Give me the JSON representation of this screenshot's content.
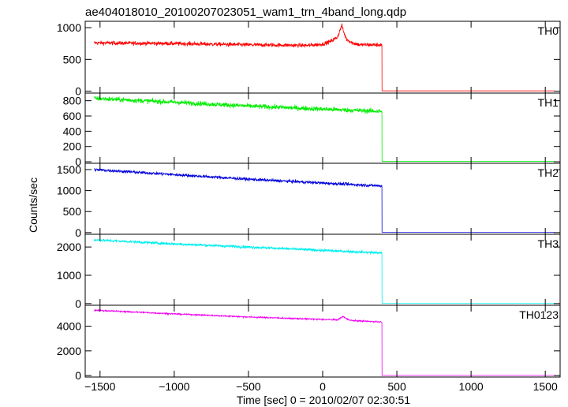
{
  "title": "ae404018010_20100207023051_wam1_trn_4band_long.qdp",
  "chart_data": {
    "type": "line",
    "title": "ae404018010_20100207023051_wam1_trn_4band_long.qdp",
    "xlabel": "Time [sec] 0 = 2010/02/07 02:30:51",
    "ylabel": "Counts/sec",
    "xlim": [
      -1600,
      1600
    ],
    "x_ticks": [
      -1500,
      -1000,
      -500,
      0,
      500,
      1000,
      1500
    ],
    "x_tick_labels": [
      "−1500",
      "−1000",
      "−500",
      "0",
      "500",
      "1000",
      "1500"
    ],
    "grid": false,
    "data_end_time": 400,
    "data_start_time": -1540,
    "series": [
      {
        "name": "TH0",
        "color": "#ff0000",
        "ylim": [
          -30,
          1100
        ],
        "y_ticks": [
          0,
          500,
          1000
        ],
        "y_tick_labels": [
          "0",
          "500",
          "1000"
        ],
        "profile_times": [
          -1540,
          -1000,
          -500,
          -100,
          0,
          50,
          100,
          120,
          130,
          140,
          160,
          200,
          250,
          400
        ],
        "profile_values": [
          760,
          750,
          730,
          720,
          740,
          780,
          850,
          980,
          1040,
          940,
          820,
          760,
          730,
          730
        ],
        "noise": 30,
        "after_level": 5
      },
      {
        "name": "TH1",
        "color": "#00ee00",
        "ylim": [
          -20,
          900
        ],
        "y_ticks": [
          0,
          200,
          400,
          600,
          800
        ],
        "y_tick_labels": [
          "0",
          "200",
          "400",
          "600",
          "800"
        ],
        "profile_times": [
          -1540,
          -1000,
          -500,
          0,
          400
        ],
        "profile_values": [
          830,
          780,
          730,
          690,
          660
        ],
        "noise": 30,
        "after_level": 5
      },
      {
        "name": "TH2",
        "color": "#0000dd",
        "ylim": [
          -40,
          1650
        ],
        "y_ticks": [
          0,
          500,
          1000,
          1500
        ],
        "y_tick_labels": [
          "0",
          "500",
          "1000",
          "1500"
        ],
        "profile_times": [
          -1540,
          -1000,
          -500,
          0,
          400
        ],
        "profile_values": [
          1500,
          1380,
          1270,
          1180,
          1110
        ],
        "noise": 35,
        "after_level": 10
      },
      {
        "name": "TH3",
        "color": "#00eeee",
        "ylim": [
          -60,
          2450
        ],
        "y_ticks": [
          0,
          1000,
          2000
        ],
        "y_tick_labels": [
          "0",
          "1000",
          "2000"
        ],
        "profile_times": [
          -1540,
          -1000,
          -500,
          0,
          400
        ],
        "profile_values": [
          2250,
          2110,
          2000,
          1880,
          1790
        ],
        "noise": 45,
        "after_level": 10
      },
      {
        "name": "TH0123",
        "color": "#ee00ee",
        "ylim": [
          -120,
          5700
        ],
        "y_ticks": [
          0,
          2000,
          4000
        ],
        "y_tick_labels": [
          "0",
          "2000",
          "4000"
        ],
        "profile_times": [
          -1540,
          -1000,
          -500,
          0,
          100,
          140,
          160,
          200,
          400
        ],
        "profile_values": [
          5300,
          5000,
          4750,
          4550,
          4520,
          4800,
          4600,
          4450,
          4350
        ],
        "noise": 55,
        "after_level": 10
      }
    ]
  }
}
